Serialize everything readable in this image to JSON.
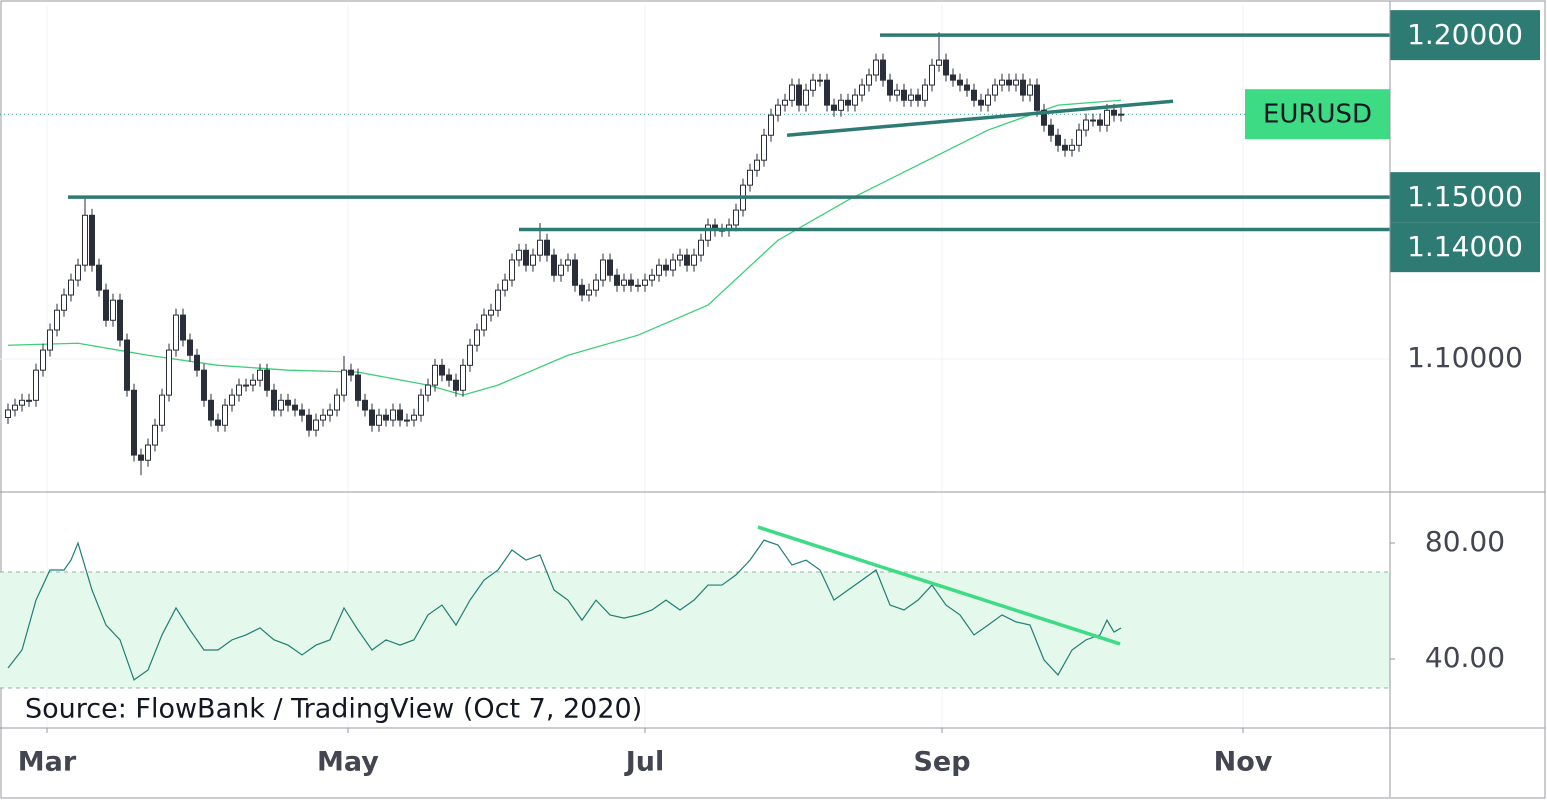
{
  "chart_data": [
    {
      "type": "candlestick",
      "symbol": "EURUSD",
      "xlim": [
        -1.143,
        197.43
      ],
      "ylim": [
        1.059,
        1.2093
      ],
      "yticks": [
        {
          "value": 1.1,
          "label": "1.10000"
        }
      ],
      "grid": true,
      "candle_colors": {
        "up": "#ffffff",
        "down": "#2a2e39",
        "border": "#2a2e39"
      },
      "open": [
        1.082,
        1.0843,
        1.0858,
        1.0873,
        1.0873,
        1.0966,
        1.1028,
        1.109,
        1.1151,
        1.1198,
        1.1244,
        1.129,
        1.1444,
        1.129,
        1.1213,
        1.112,
        1.1182,
        1.1059,
        1.0904,
        1.0704,
        1.0688,
        1.0735,
        1.0796,
        1.0889,
        1.1028,
        1.1136,
        1.1059,
        1.1012,
        1.0966,
        1.0873,
        1.0812,
        1.0796,
        1.0858,
        1.0889,
        1.092,
        1.092,
        1.0935,
        1.0966,
        1.0904,
        1.0843,
        1.0873,
        1.0858,
        1.0843,
        1.0827,
        1.0781,
        1.0812,
        1.0827,
        1.0843,
        1.0889,
        1.0966,
        1.0951,
        1.0873,
        1.0843,
        1.0796,
        1.0827,
        1.0812,
        1.0843,
        1.0812,
        1.0812,
        1.0827,
        1.0889,
        1.092,
        1.0981,
        1.0951,
        1.0935,
        1.0904,
        1.0981,
        1.1043,
        1.109,
        1.1136,
        1.1151,
        1.1213,
        1.1244,
        1.1306,
        1.1336,
        1.129,
        1.1321,
        1.1367,
        1.1321,
        1.1259,
        1.129,
        1.1306,
        1.1228,
        1.1198,
        1.1213,
        1.1244,
        1.1306,
        1.1259,
        1.1228,
        1.1244,
        1.1228,
        1.1228,
        1.1244,
        1.1259,
        1.129,
        1.1275,
        1.1306,
        1.1321,
        1.129,
        1.1321,
        1.1367,
        1.1414,
        1.1398,
        1.1398,
        1.1414,
        1.146,
        1.1537,
        1.1583,
        1.1614,
        1.1691,
        1.1753,
        1.1784,
        1.1799,
        1.1846,
        1.1784,
        1.183,
        1.1861,
        1.1861,
        1.1784,
        1.1768,
        1.1799,
        1.1784,
        1.1815,
        1.1846,
        1.1877,
        1.1923,
        1.1861,
        1.1815,
        1.183,
        1.1799,
        1.1815,
        1.1799,
        1.1846,
        1.1907,
        1.1923,
        1.1877,
        1.1861,
        1.1846,
        1.183,
        1.1799,
        1.1784,
        1.1815,
        1.1846,
        1.1861,
        1.1846,
        1.1861,
        1.1815,
        1.1846,
        1.1768,
        1.1722,
        1.1691,
        1.166,
        1.1645,
        1.166,
        1.1707,
        1.1738,
        1.1738,
        1.1722,
        1.1768,
        1.1753
      ],
      "high": [
        1.0863,
        1.0878,
        1.0893,
        1.0893,
        1.0986,
        1.1048,
        1.111,
        1.1171,
        1.1218,
        1.1264,
        1.131,
        1.1496,
        1.1464,
        1.131,
        1.1233,
        1.1202,
        1.1202,
        1.1079,
        1.0924,
        1.0724,
        1.0755,
        1.0816,
        1.0909,
        1.1048,
        1.1156,
        1.1156,
        1.1079,
        1.1032,
        1.0986,
        1.0893,
        1.0832,
        1.0878,
        1.0909,
        1.094,
        1.094,
        1.0955,
        1.0986,
        1.0986,
        1.0924,
        1.0893,
        1.0893,
        1.0878,
        1.0863,
        1.0847,
        1.0832,
        1.0847,
        1.0863,
        1.0909,
        1.101,
        1.0986,
        1.0971,
        1.0893,
        1.0863,
        1.0847,
        1.0847,
        1.0863,
        1.0863,
        1.0832,
        1.0847,
        1.0909,
        1.094,
        1.1001,
        1.1001,
        1.0971,
        1.0955,
        1.1001,
        1.1063,
        1.111,
        1.1156,
        1.1171,
        1.1233,
        1.1264,
        1.1326,
        1.1356,
        1.1356,
        1.1341,
        1.142,
        1.1387,
        1.1341,
        1.131,
        1.1326,
        1.1326,
        1.1248,
        1.1233,
        1.1264,
        1.1326,
        1.1326,
        1.1279,
        1.1264,
        1.1264,
        1.1248,
        1.1264,
        1.1279,
        1.131,
        1.131,
        1.1326,
        1.1341,
        1.1341,
        1.1341,
        1.1387,
        1.1434,
        1.1434,
        1.1418,
        1.1434,
        1.148,
        1.1557,
        1.1603,
        1.1634,
        1.1711,
        1.1773,
        1.1804,
        1.1819,
        1.1866,
        1.1866,
        1.185,
        1.1881,
        1.1881,
        1.1881,
        1.1804,
        1.1819,
        1.1819,
        1.1835,
        1.1866,
        1.1897,
        1.1943,
        1.1943,
        1.1881,
        1.185,
        1.185,
        1.1835,
        1.1835,
        1.1866,
        1.1927,
        1.2009,
        1.1943,
        1.1897,
        1.1881,
        1.1866,
        1.185,
        1.1819,
        1.1835,
        1.1866,
        1.1881,
        1.1881,
        1.1881,
        1.1881,
        1.1866,
        1.1866,
        1.1788,
        1.1742,
        1.1711,
        1.168,
        1.168,
        1.1727,
        1.1758,
        1.1758,
        1.1758,
        1.1788,
        1.1788,
        1.1776
      ],
      "low": [
        1.08,
        1.0823,
        1.0838,
        1.0853,
        1.0853,
        1.0946,
        1.1008,
        1.107,
        1.1131,
        1.1178,
        1.1224,
        1.127,
        1.127,
        1.1193,
        1.11,
        1.11,
        1.1039,
        1.0884,
        1.0684,
        1.0642,
        1.0668,
        1.0715,
        1.0776,
        1.0869,
        1.1008,
        1.1039,
        1.0992,
        1.0946,
        1.0853,
        1.0792,
        1.0776,
        1.0776,
        1.0838,
        1.0869,
        1.09,
        1.09,
        1.0915,
        1.0884,
        1.0823,
        1.0823,
        1.0838,
        1.0823,
        1.0807,
        1.0761,
        1.0761,
        1.0792,
        1.0807,
        1.0823,
        1.0869,
        1.0931,
        1.0853,
        1.0823,
        1.0776,
        1.0776,
        1.0792,
        1.0792,
        1.0792,
        1.0792,
        1.0792,
        1.0807,
        1.0869,
        1.09,
        1.0931,
        1.0915,
        1.0884,
        1.0884,
        1.0961,
        1.1023,
        1.107,
        1.1116,
        1.1131,
        1.1193,
        1.1224,
        1.1286,
        1.127,
        1.127,
        1.1301,
        1.1301,
        1.1239,
        1.1239,
        1.127,
        1.1208,
        1.1178,
        1.1178,
        1.1193,
        1.1224,
        1.1239,
        1.1208,
        1.1208,
        1.1208,
        1.1208,
        1.1208,
        1.1224,
        1.1239,
        1.1255,
        1.1255,
        1.1286,
        1.127,
        1.127,
        1.1301,
        1.1347,
        1.1378,
        1.1378,
        1.1378,
        1.1394,
        1.144,
        1.1517,
        1.1563,
        1.1594,
        1.1671,
        1.1733,
        1.1764,
        1.1779,
        1.1764,
        1.1764,
        1.181,
        1.1841,
        1.1764,
        1.1748,
        1.1748,
        1.1764,
        1.1764,
        1.1795,
        1.1826,
        1.1857,
        1.1841,
        1.1795,
        1.1795,
        1.1779,
        1.1779,
        1.1779,
        1.1779,
        1.1826,
        1.1887,
        1.1857,
        1.1841,
        1.1826,
        1.181,
        1.1779,
        1.1764,
        1.1764,
        1.1795,
        1.1826,
        1.1826,
        1.1826,
        1.1795,
        1.1795,
        1.1748,
        1.1702,
        1.1671,
        1.164,
        1.1625,
        1.1625,
        1.164,
        1.1687,
        1.1718,
        1.1702,
        1.1702,
        1.1733,
        1.1733
      ],
      "close": [
        1.0843,
        1.0858,
        1.0873,
        1.0873,
        1.0966,
        1.1028,
        1.109,
        1.1151,
        1.1198,
        1.1244,
        1.129,
        1.1444,
        1.129,
        1.1213,
        1.112,
        1.1182,
        1.1059,
        1.0904,
        1.0704,
        1.0688,
        1.0735,
        1.0796,
        1.0889,
        1.1028,
        1.1136,
        1.1059,
        1.1012,
        1.0966,
        1.0873,
        1.0812,
        1.0796,
        1.0858,
        1.0889,
        1.092,
        1.092,
        1.0935,
        1.0966,
        1.0904,
        1.0843,
        1.0873,
        1.0858,
        1.0843,
        1.0827,
        1.0781,
        1.0812,
        1.0827,
        1.0843,
        1.0889,
        1.0966,
        1.0951,
        1.0873,
        1.0843,
        1.0796,
        1.0827,
        1.0812,
        1.0843,
        1.0812,
        1.0812,
        1.0827,
        1.0889,
        1.092,
        1.0981,
        1.0951,
        1.0935,
        1.0904,
        1.0981,
        1.1043,
        1.109,
        1.1136,
        1.1151,
        1.1213,
        1.1244,
        1.1306,
        1.1336,
        1.129,
        1.1321,
        1.1367,
        1.1321,
        1.1259,
        1.129,
        1.1306,
        1.1228,
        1.1198,
        1.1213,
        1.1244,
        1.1306,
        1.1259,
        1.1228,
        1.1244,
        1.1228,
        1.1228,
        1.1244,
        1.1259,
        1.129,
        1.1275,
        1.1306,
        1.1321,
        1.129,
        1.1321,
        1.1367,
        1.1414,
        1.1398,
        1.1398,
        1.1414,
        1.146,
        1.1537,
        1.1583,
        1.1614,
        1.1691,
        1.1753,
        1.1784,
        1.1799,
        1.1846,
        1.1784,
        1.183,
        1.1861,
        1.1861,
        1.1784,
        1.1768,
        1.1799,
        1.1784,
        1.1815,
        1.1846,
        1.1877,
        1.1923,
        1.1861,
        1.1815,
        1.183,
        1.1799,
        1.1815,
        1.1799,
        1.1846,
        1.1907,
        1.1923,
        1.1877,
        1.1861,
        1.1846,
        1.183,
        1.1799,
        1.1784,
        1.1815,
        1.1846,
        1.1861,
        1.1846,
        1.1861,
        1.1815,
        1.1846,
        1.1768,
        1.1722,
        1.1691,
        1.166,
        1.1645,
        1.166,
        1.1707,
        1.1738,
        1.1738,
        1.1722,
        1.1768,
        1.1753,
        1.1756
      ],
      "ma": {
        "color": "#3ccf7a",
        "x": [
          0,
          10,
          20,
          30,
          40,
          50,
          60,
          65,
          70,
          80,
          90,
          100,
          110,
          120,
          130,
          140,
          150,
          159
        ],
        "values": [
          1.1043,
          1.1049,
          1.1012,
          1.0981,
          1.0966,
          1.096,
          1.092,
          1.0889,
          1.092,
          1.1012,
          1.1074,
          1.1167,
          1.1367,
          1.1491,
          1.1599,
          1.1707,
          1.1784,
          1.1799
        ]
      },
      "level_color": "#2e7b74",
      "levels": [
        {
          "value": 1.2,
          "label": "1.20000",
          "from": 124.57
        },
        {
          "value": 1.15,
          "label": "1.15000",
          "from": 8.57
        },
        {
          "value": 1.14,
          "label": "1.14000",
          "from": 73
        }
      ],
      "trendlines": [
        {
          "x": [
            111.29,
            166.43
          ],
          "values": [
            1.1691,
            1.1796
          ]
        }
      ],
      "last_price_color": "#3ddc84"
    },
    {
      "type": "line",
      "annotation": "Source: FlowBank / TradingView (Oct 7, 2020)",
      "xlim": [
        -1.143,
        197.43
      ],
      "xticks": [
        {
          "value": 5.57,
          "label": "Mar"
        },
        {
          "value": 48.57,
          "label": "May"
        },
        {
          "value": 91,
          "label": "Jul"
        },
        {
          "value": 133.43,
          "label": "Sep"
        },
        {
          "value": 176.43,
          "label": "Nov"
        }
      ],
      "ylim": [
        16.2,
        97.6
      ],
      "yticks": [
        {
          "value": 80,
          "label": "80.00"
        },
        {
          "value": 40,
          "label": "40.00"
        }
      ],
      "band": [
        30,
        70
      ],
      "band_color": "#e5f8ec",
      "color": "#1e7f74",
      "x": [
        0,
        2,
        4,
        6,
        8,
        9,
        10,
        12,
        14,
        16,
        18,
        20,
        22,
        24,
        26,
        28,
        30,
        32,
        34,
        36,
        38,
        40,
        42,
        44,
        46,
        48,
        50,
        52,
        54,
        56,
        58,
        60,
        62,
        64,
        66,
        68,
        70,
        72,
        74,
        76,
        78,
        80,
        82,
        84,
        86,
        88,
        90,
        92,
        94,
        96,
        98,
        100,
        102,
        104,
        106,
        108,
        110,
        112,
        114,
        116,
        118,
        120,
        122,
        124,
        126,
        128,
        130,
        132,
        134,
        136,
        138,
        140,
        142,
        144,
        146,
        148,
        150,
        152,
        154,
        156,
        157,
        158,
        159
      ],
      "values": [
        36.9,
        43.1,
        60.3,
        70.7,
        70.7,
        74.1,
        80,
        63.8,
        51.7,
        46.6,
        32.8,
        36.2,
        48.3,
        57.6,
        50,
        43.1,
        43.1,
        46.6,
        48.3,
        50.7,
        46.6,
        44.8,
        41.4,
        44.8,
        46.6,
        57.6,
        50,
        43.1,
        46.6,
        44.8,
        46.6,
        55.2,
        58.6,
        51.7,
        60.3,
        67.2,
        70.7,
        77.6,
        74.1,
        75.9,
        63.8,
        60.3,
        53.4,
        60.3,
        55.2,
        54.1,
        55.2,
        56.9,
        60.3,
        56.9,
        60.3,
        65.5,
        65.5,
        69,
        74.1,
        81,
        79.3,
        72.4,
        74.1,
        70.7,
        60.3,
        63.8,
        67.2,
        70.7,
        58.6,
        56.9,
        60.3,
        65.5,
        58.6,
        55.2,
        48.3,
        51.7,
        55.2,
        52.8,
        51.7,
        39.7,
        34.5,
        43.1,
        46.6,
        48.3,
        53.4,
        49.3,
        50.7
      ],
      "trendlines": [
        {
          "x": [
            107.14,
            158.86
          ],
          "values": [
            85.5,
            45.2
          ],
          "color": "#3ddc84"
        }
      ]
    }
  ]
}
